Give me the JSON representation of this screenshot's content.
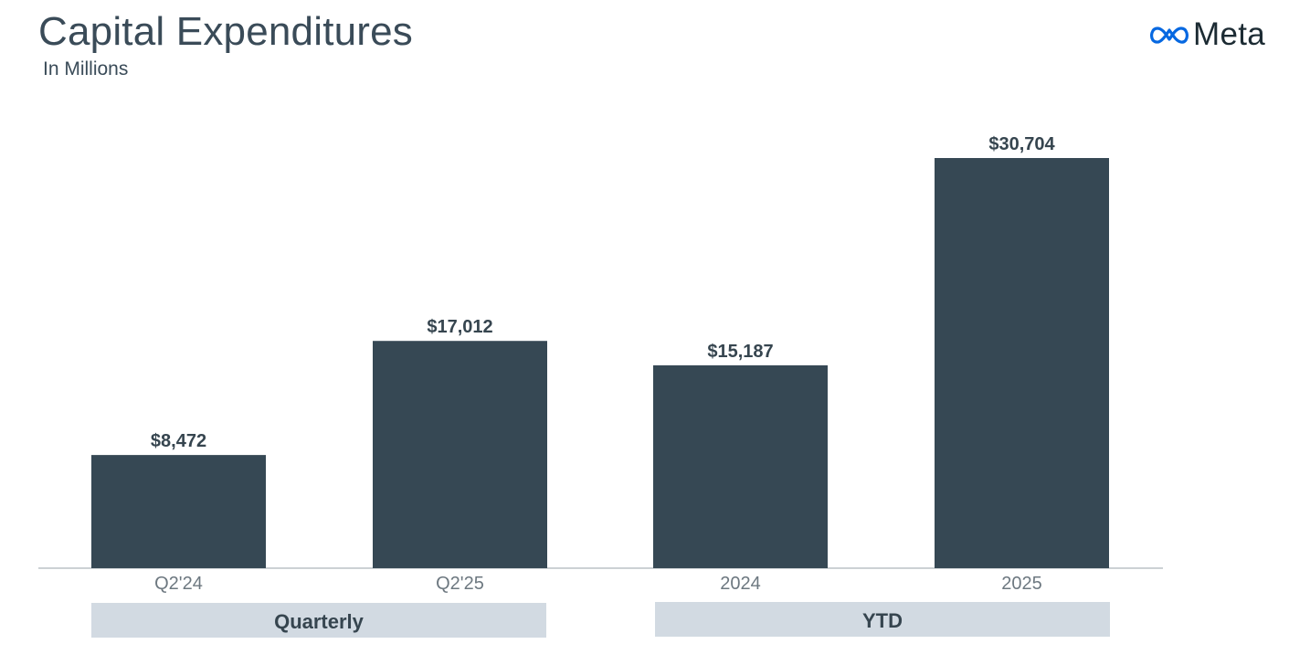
{
  "header": {
    "title": "Capital Expenditures",
    "subtitle": "In Millions"
  },
  "brand": {
    "name": "Meta",
    "icon": "meta-infinity-icon",
    "color": "#1c2b33",
    "icon_color": "#0668e1"
  },
  "colors": {
    "bar": "#364854",
    "group_box": "#d2dae2",
    "text": "#36454f",
    "tick": "#6d7880"
  },
  "chart_data": {
    "type": "bar",
    "title": "Capital Expenditures",
    "subtitle": "In Millions",
    "categories": [
      "Q2'24",
      "Q2'25",
      "2024",
      "2025"
    ],
    "values": [
      8472,
      17012,
      15187,
      30704
    ],
    "value_labels": [
      "$8,472",
      "$17,012",
      "$15,187",
      "$30,704"
    ],
    "groups": [
      {
        "label": "Quarterly",
        "categories": [
          "Q2'24",
          "Q2'25"
        ]
      },
      {
        "label": "YTD",
        "categories": [
          "2024",
          "2025"
        ]
      }
    ],
    "ylim": [
      0,
      30704
    ],
    "grid": false,
    "legend": "none",
    "xlabel": "",
    "ylabel": ""
  }
}
